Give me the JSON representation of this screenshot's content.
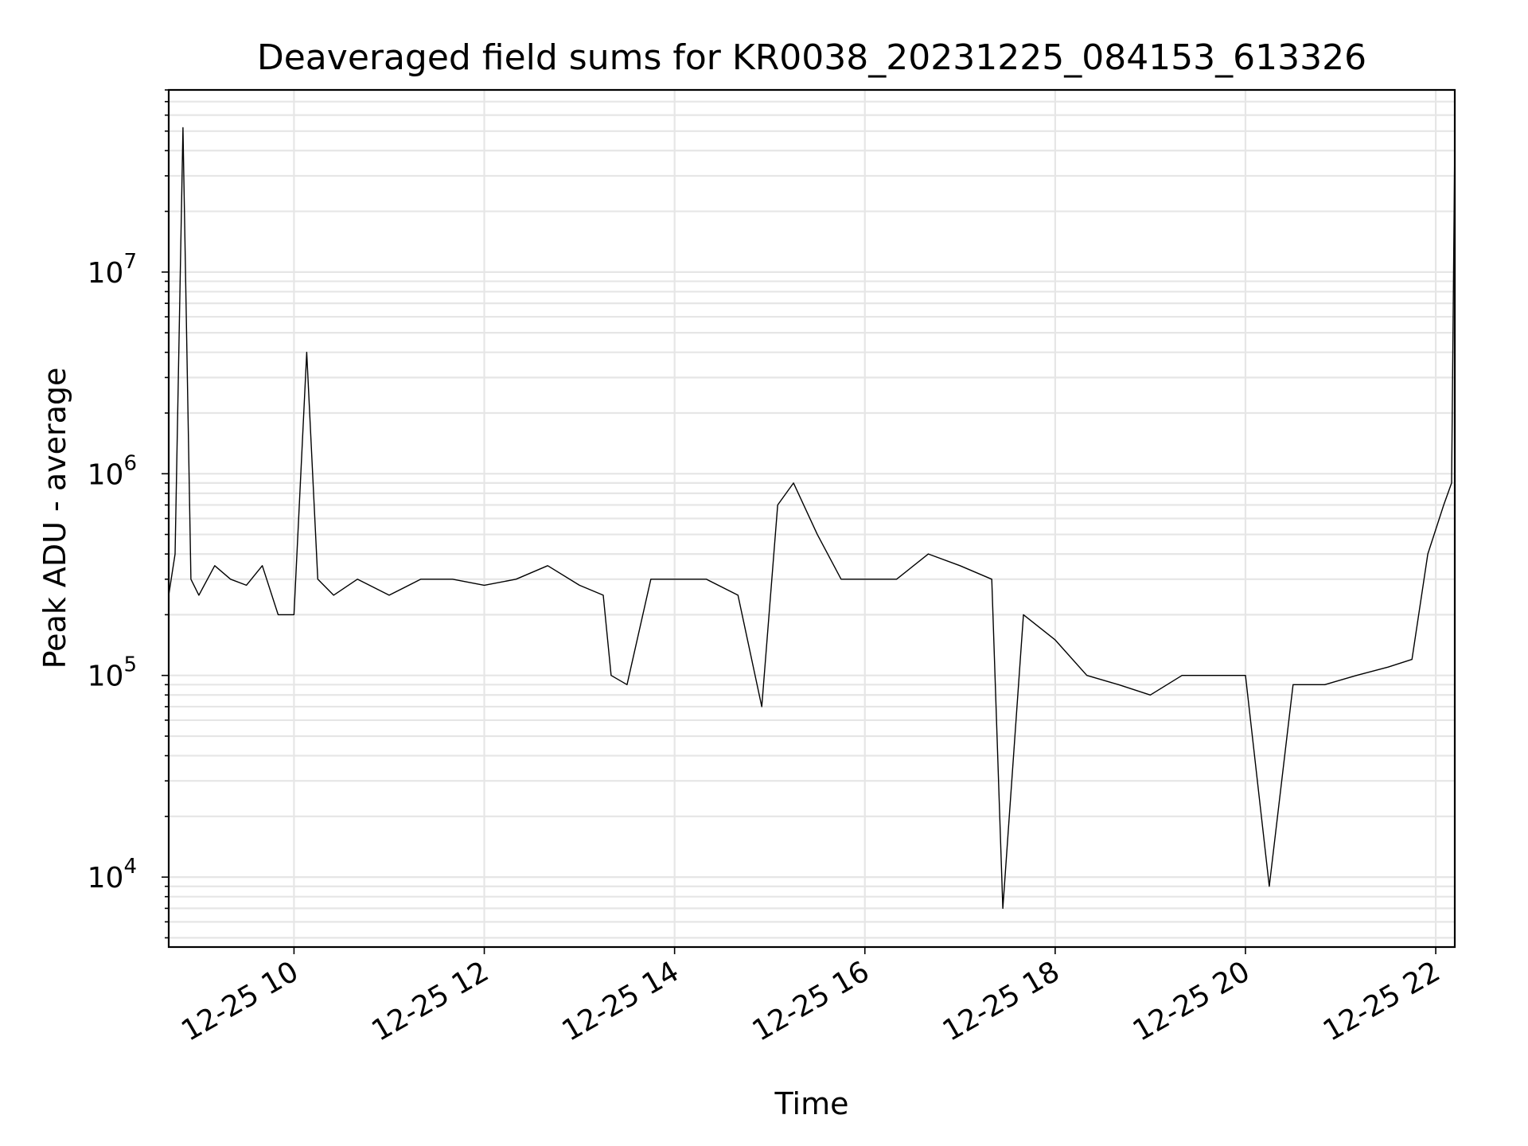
{
  "chart_data": {
    "type": "line",
    "title": "Deaveraged field sums for KR0038_20231225_084153_613326",
    "xlabel": "Time",
    "ylabel": "Peak ADU - average",
    "yscale": "log",
    "ylim": [
      4500,
      80000000
    ],
    "xlim": [
      "2023-12-25T08:41",
      "2023-12-25T22:12"
    ],
    "grid": true,
    "line_color": "#000000",
    "x_ticks": [
      {
        "t": "2023-12-25T10:00",
        "label": "12-25 10"
      },
      {
        "t": "2023-12-25T12:00",
        "label": "12-25 12"
      },
      {
        "t": "2023-12-25T14:00",
        "label": "12-25 14"
      },
      {
        "t": "2023-12-25T16:00",
        "label": "12-25 16"
      },
      {
        "t": "2023-12-25T18:00",
        "label": "12-25 18"
      },
      {
        "t": "2023-12-25T20:00",
        "label": "12-25 20"
      },
      {
        "t": "2023-12-25T22:00",
        "label": "12-25 22"
      }
    ],
    "y_ticks": [
      {
        "value": 10000,
        "base": "10",
        "exp": "4"
      },
      {
        "value": 100000,
        "base": "10",
        "exp": "5"
      },
      {
        "value": 1000000,
        "base": "10",
        "exp": "6"
      },
      {
        "value": 10000000,
        "base": "10",
        "exp": "7"
      }
    ],
    "series": [
      {
        "x": [
          "2023-12-25T08:41",
          "2023-12-25T08:45",
          "2023-12-25T08:50",
          "2023-12-25T08:55",
          "2023-12-25T09:00",
          "2023-12-25T09:10",
          "2023-12-25T09:20",
          "2023-12-25T09:30",
          "2023-12-25T09:40",
          "2023-12-25T09:50",
          "2023-12-25T10:00",
          "2023-12-25T10:08",
          "2023-12-25T10:15",
          "2023-12-25T10:25",
          "2023-12-25T10:40",
          "2023-12-25T11:00",
          "2023-12-25T11:20",
          "2023-12-25T11:40",
          "2023-12-25T12:00",
          "2023-12-25T12:20",
          "2023-12-25T12:40",
          "2023-12-25T13:00",
          "2023-12-25T13:15",
          "2023-12-25T13:20",
          "2023-12-25T13:30",
          "2023-12-25T13:45",
          "2023-12-25T14:00",
          "2023-12-25T14:20",
          "2023-12-25T14:40",
          "2023-12-25T14:55",
          "2023-12-25T15:05",
          "2023-12-25T15:15",
          "2023-12-25T15:30",
          "2023-12-25T15:45",
          "2023-12-25T16:00",
          "2023-12-25T16:20",
          "2023-12-25T16:40",
          "2023-12-25T17:00",
          "2023-12-25T17:20",
          "2023-12-25T17:27",
          "2023-12-25T17:40",
          "2023-12-25T18:00",
          "2023-12-25T18:20",
          "2023-12-25T18:40",
          "2023-12-25T19:00",
          "2023-12-25T19:20",
          "2023-12-25T19:40",
          "2023-12-25T20:00",
          "2023-12-25T20:15",
          "2023-12-25T20:30",
          "2023-12-25T20:50",
          "2023-12-25T21:10",
          "2023-12-25T21:30",
          "2023-12-25T21:45",
          "2023-12-25T21:55",
          "2023-12-25T22:05",
          "2023-12-25T22:10",
          "2023-12-25T22:12"
        ],
        "y": [
          250000,
          400000,
          52000000,
          300000,
          250000,
          350000,
          300000,
          280000,
          350000,
          200000,
          200000,
          4000000,
          300000,
          250000,
          300000,
          250000,
          300000,
          300000,
          280000,
          300000,
          350000,
          280000,
          250000,
          100000,
          90000,
          300000,
          300000,
          300000,
          250000,
          70000,
          700000,
          900000,
          500000,
          300000,
          300000,
          300000,
          400000,
          350000,
          300000,
          7000,
          200000,
          150000,
          100000,
          90000,
          80000,
          100000,
          100000,
          100000,
          9000,
          90000,
          90000,
          100000,
          110000,
          120000,
          400000,
          700000,
          900000,
          45000000
        ]
      }
    ]
  }
}
